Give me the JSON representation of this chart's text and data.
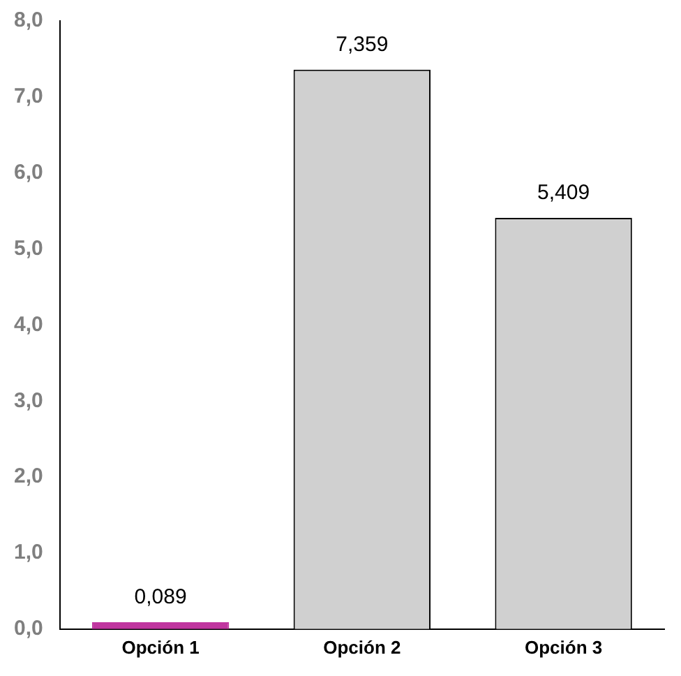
{
  "chart_data": {
    "type": "bar",
    "categories": [
      "Opción 1",
      "Opción 2",
      "Opción 3"
    ],
    "values": [
      0.089,
      7.359,
      5.409
    ],
    "colors": [
      "#c0359f",
      "#d0d0d0",
      "#d0d0d0"
    ],
    "value_labels": [
      "0,089",
      "7,359",
      "5,409"
    ],
    "ylim": [
      0,
      8
    ],
    "yticks": [
      {
        "value": 0,
        "label": "0,0"
      },
      {
        "value": 1,
        "label": "1,0"
      },
      {
        "value": 2,
        "label": "2,0"
      },
      {
        "value": 3,
        "label": "3,0"
      },
      {
        "value": 4,
        "label": "4,0"
      },
      {
        "value": 5,
        "label": "5,0"
      },
      {
        "value": 6,
        "label": "6,0"
      },
      {
        "value": 7,
        "label": "7,0"
      },
      {
        "value": 8,
        "label": "8,0"
      }
    ],
    "grid": false,
    "legend": false
  }
}
